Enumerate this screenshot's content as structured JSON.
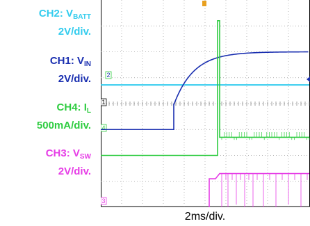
{
  "labels": {
    "ch2": {
      "name": "CH2: V",
      "sub": "BATT",
      "scale": "2V/div."
    },
    "ch1": {
      "name": "CH1: V",
      "sub": "IN",
      "scale": "2V/div."
    },
    "ch4": {
      "name": "CH4: I",
      "sub": "L",
      "scale": "500mA/div."
    },
    "ch3": {
      "name": "CH3: V",
      "sub": "SW",
      "scale": "2V/div."
    }
  },
  "timebase": "2ms/div.",
  "markers": {
    "ch1": "2",
    "ref1": "1",
    "ch4": "4",
    "ch3": "3"
  },
  "colors": {
    "ch2": "#33ccee",
    "ch1": "#1a2fb0",
    "ch4": "#2ecc40",
    "ch3": "#e63ee6",
    "trigger": "#e8a020"
  },
  "chart_data": {
    "type": "line",
    "xlabel": "2ms/div.",
    "x_divisions": 10,
    "y_divisions": 8,
    "series": [
      {
        "name": "CH2: VBATT",
        "x_div": [
          0,
          10
        ],
        "y_div": [
          0.72,
          0.72
        ]
      },
      {
        "name": "CH1: VIN",
        "x_div": [
          0,
          3.5,
          3.5,
          4.0,
          5.0,
          6.0,
          7.0,
          8.0,
          10.0
        ],
        "y_div": [
          -1.0,
          -1.0,
          0.0,
          0.9,
          1.55,
          1.82,
          1.95,
          2.0,
          2.0
        ]
      },
      {
        "name": "CH4: IL",
        "x_div": [
          0,
          5.6,
          5.6,
          5.7,
          5.7,
          10
        ],
        "y_div": [
          -2.0,
          -2.0,
          3.2,
          3.2,
          -1.3,
          -1.3
        ]
      },
      {
        "name": "CH3: VSW",
        "x_div": [
          0,
          5.2,
          5.2,
          5.5,
          5.7,
          10
        ],
        "y_div": [
          -4.8,
          -4.8,
          -2.9,
          -2.9,
          -2.7,
          -2.7
        ]
      }
    ]
  }
}
